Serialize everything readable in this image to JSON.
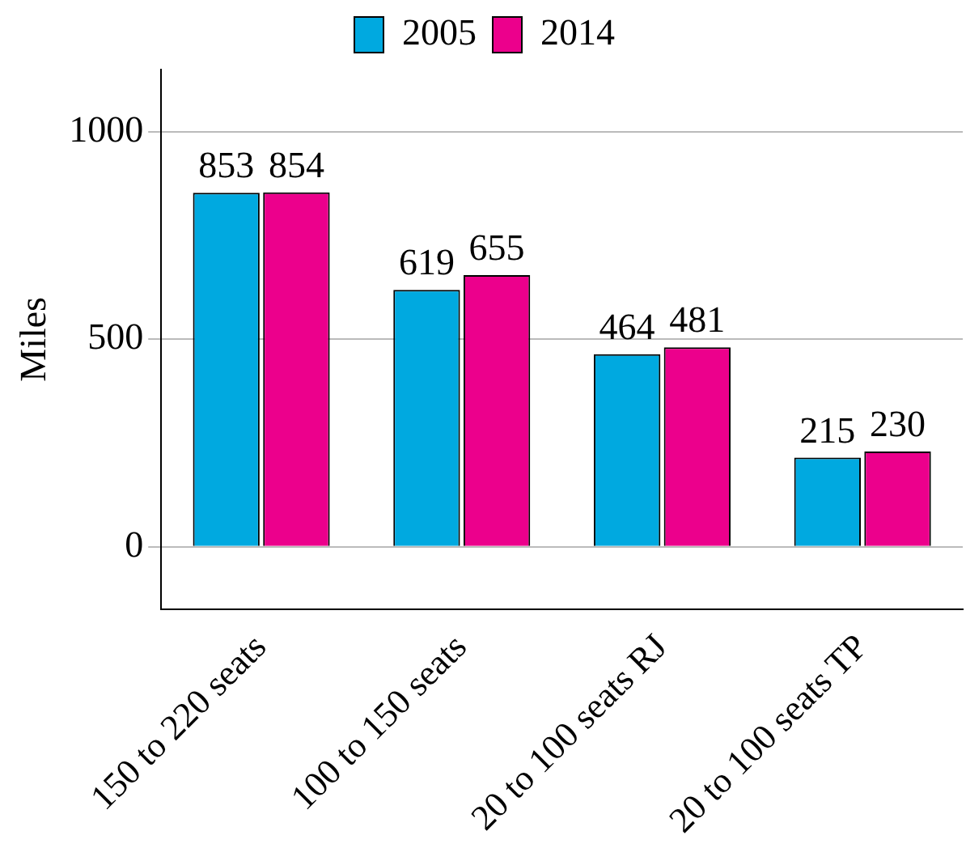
{
  "chart_data": {
    "type": "bar",
    "ylabel": "Miles",
    "categories": [
      "150 to 220 seats",
      "100 to 150 seats",
      "20 to 100 seats RJ",
      "20 to 100 seats TP"
    ],
    "series": [
      {
        "name": "2005",
        "color": "#00a9e0",
        "values": [
          853,
          619,
          464,
          215
        ]
      },
      {
        "name": "2014",
        "color": "#ec008c",
        "values": [
          854,
          655,
          481,
          230
        ]
      }
    ],
    "ylim": [
      -150,
      1150
    ],
    "yticks": [
      0,
      500,
      1000
    ],
    "grid": "y",
    "legend": "top",
    "data_labels": true
  }
}
